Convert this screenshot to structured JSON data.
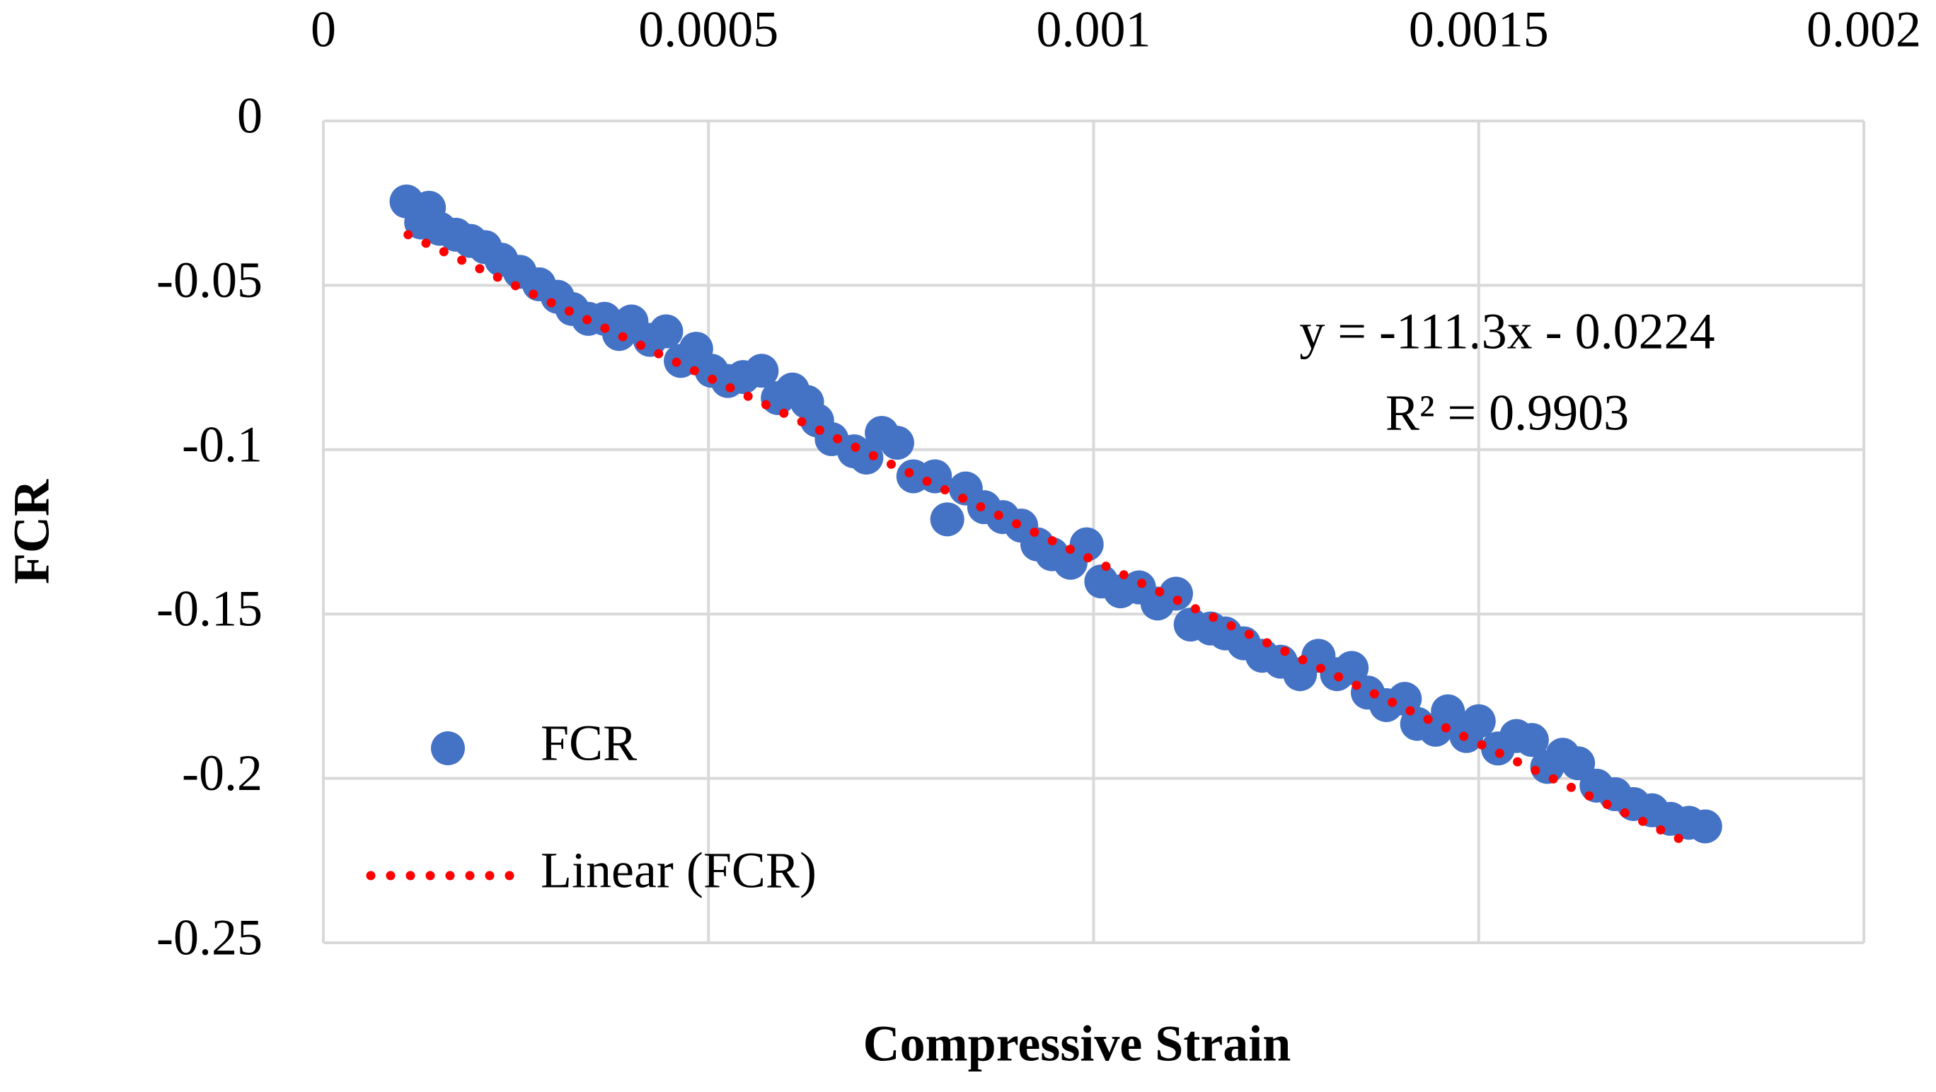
{
  "chart_data": {
    "type": "scatter",
    "xlabel": "Compressive Strain",
    "ylabel": "FCR",
    "series": [
      {
        "name": "FCR",
        "color": "#4472c4",
        "x": [
          0.000108,
          0.000137,
          0.000127,
          0.000151,
          0.000172,
          0.000191,
          0.00021,
          0.000231,
          0.000255,
          0.00028,
          0.000304,
          0.000323,
          0.000344,
          0.000365,
          0.000384,
          0.0004,
          0.000424,
          0.000445,
          0.000464,
          0.000484,
          0.000504,
          0.000525,
          0.000545,
          0.000569,
          0.00059,
          0.000609,
          0.000628,
          0.000641,
          0.00066,
          0.000689,
          0.000705,
          0.000725,
          0.000745,
          0.000766,
          0.000794,
          0.00081,
          0.000834,
          0.000858,
          0.000882,
          0.000906,
          0.000927,
          0.000946,
          0.00097,
          0.000991,
          0.00101,
          0.001035,
          0.001059,
          0.001083,
          0.001107,
          0.001126,
          0.001152,
          0.001171,
          0.001195,
          0.001219,
          0.001243,
          0.001268,
          0.001292,
          0.001316,
          0.001335,
          0.001356,
          0.00138,
          0.001404,
          0.00142,
          0.001444,
          0.00146,
          0.001484,
          0.0015,
          0.001525,
          0.001549,
          0.001569,
          0.001589,
          0.001609,
          0.001629,
          0.001653,
          0.001677,
          0.001701,
          0.001725,
          0.001749,
          0.001773,
          0.001794
        ],
        "values": [
          -0.0245,
          -0.0264,
          -0.0309,
          -0.0328,
          -0.0346,
          -0.0365,
          -0.0384,
          -0.0422,
          -0.0459,
          -0.0497,
          -0.0535,
          -0.0572,
          -0.0602,
          -0.0602,
          -0.0648,
          -0.061,
          -0.0666,
          -0.064,
          -0.073,
          -0.0693,
          -0.076,
          -0.0791,
          -0.0779,
          -0.076,
          -0.0843,
          -0.0817,
          -0.0855,
          -0.0911,
          -0.0968,
          -0.1005,
          -0.1024,
          -0.0949,
          -0.0979,
          -0.1081,
          -0.1081,
          -0.1212,
          -0.1118,
          -0.1175,
          -0.1205,
          -0.1231,
          -0.1288,
          -0.1318,
          -0.1344,
          -0.1288,
          -0.1401,
          -0.1431,
          -0.1419,
          -0.1468,
          -0.1438,
          -0.1532,
          -0.1544,
          -0.1559,
          -0.1589,
          -0.1627,
          -0.1645,
          -0.1683,
          -0.1627,
          -0.1683,
          -0.1664,
          -0.1739,
          -0.1777,
          -0.1758,
          -0.1834,
          -0.1852,
          -0.1796,
          -0.1871,
          -0.1826,
          -0.1909,
          -0.1871,
          -0.1883,
          -0.1965,
          -0.1928,
          -0.1954,
          -0.2022,
          -0.2048,
          -0.2078,
          -0.2097,
          -0.2123,
          -0.2135,
          -0.2146
        ]
      }
    ],
    "trendline": {
      "name": "Linear (FCR)",
      "color": "#ff0000",
      "x": [
        0.00011,
        0.00176
      ],
      "values": [
        -0.0346,
        -0.2183
      ]
    },
    "annotations": [
      "y = -111.3x - 0.0224",
      "R² = 0.9903"
    ],
    "xlim": [
      0,
      0.002
    ],
    "xticks": [
      0,
      0.0005,
      0.001,
      0.0015,
      0.002
    ],
    "ylim": [
      -0.25,
      0
    ],
    "yticks": [
      0,
      -0.05,
      -0.1,
      -0.15,
      -0.2,
      -0.25
    ],
    "grid": true,
    "legend": "lower left"
  }
}
